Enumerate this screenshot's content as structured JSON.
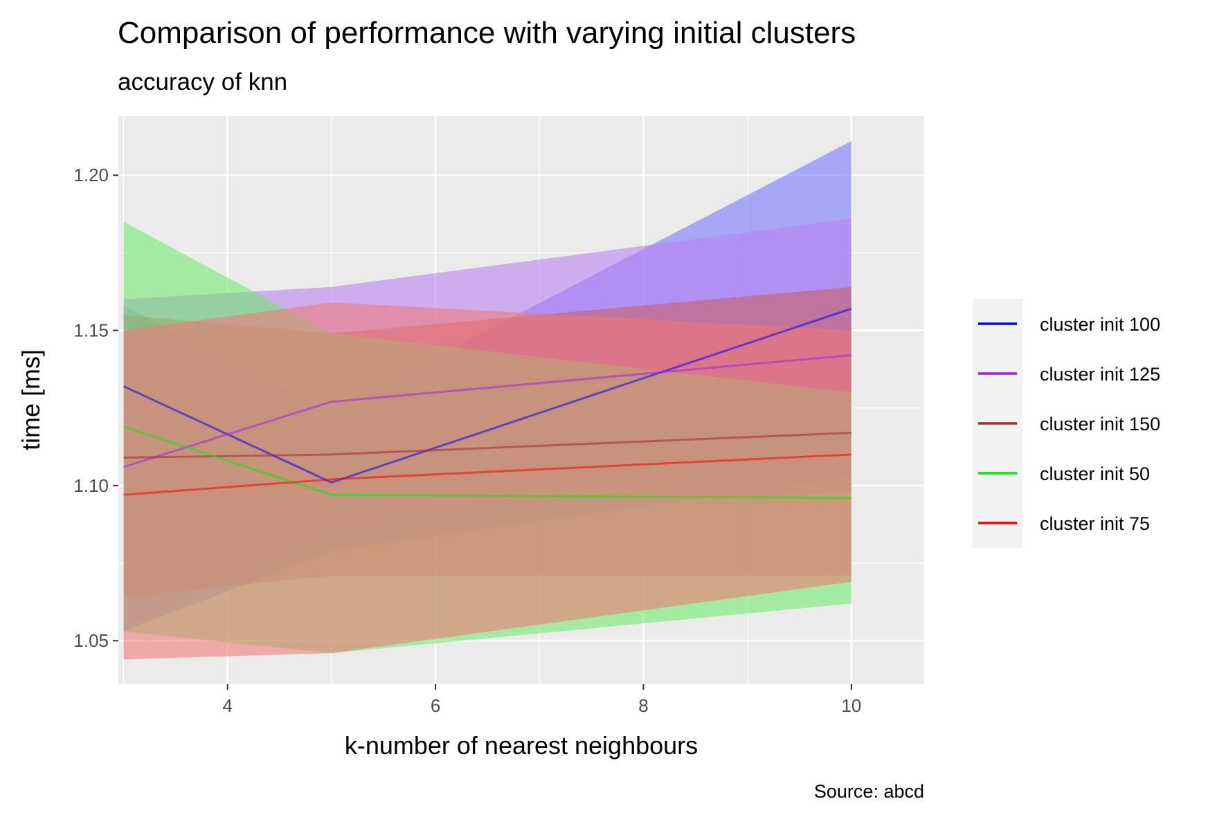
{
  "chart_data": {
    "type": "line",
    "title": "Comparison of performance with varying initial clusters",
    "subtitle": "accuracy of knn",
    "xlabel": "k-number of nearest neighbours",
    "ylabel": "time [ms]",
    "caption": "Source: abcd",
    "xlim": [
      2.95,
      10.7
    ],
    "ylim": [
      1.036,
      1.219
    ],
    "xticks": [
      4,
      6,
      8,
      10
    ],
    "xtick_labels": [
      "4",
      "6",
      "8",
      "10"
    ],
    "yticks": [
      1.05,
      1.1,
      1.15,
      1.2
    ],
    "ytick_labels": [
      "1.05",
      "1.10",
      "1.15",
      "1.20"
    ],
    "grid": true,
    "legend_position": "right",
    "series": [
      {
        "name": "cluster init 100",
        "color": "#0000ff",
        "fill": "#7575ff",
        "x": [
          3,
          5,
          10
        ],
        "y": [
          1.132,
          1.101,
          1.157
        ],
        "ymin": [
          1.053,
          1.079,
          1.103
        ],
        "ymax": [
          1.158,
          1.124,
          1.211
        ]
      },
      {
        "name": "cluster init 125",
        "color": "#a020f0",
        "fill": "#b87ef0",
        "x": [
          3,
          5,
          10
        ],
        "y": [
          1.106,
          1.127,
          1.142
        ],
        "ymin": [
          1.053,
          1.089,
          1.098
        ],
        "ymax": [
          1.16,
          1.164,
          1.186
        ]
      },
      {
        "name": "cluster init 150",
        "color": "#a52a2a",
        "fill": "#c86060",
        "x": [
          3,
          5,
          10
        ],
        "y": [
          1.109,
          1.11,
          1.117
        ],
        "ymin": [
          1.064,
          1.071,
          1.071
        ],
        "ymax": [
          1.155,
          1.149,
          1.164
        ]
      },
      {
        "name": "cluster init 50",
        "color": "#00ee00",
        "fill": "#6ee86e",
        "x": [
          3,
          5,
          10
        ],
        "y": [
          1.119,
          1.097,
          1.096
        ],
        "ymin": [
          1.053,
          1.046,
          1.062
        ],
        "ymax": [
          1.185,
          1.149,
          1.13
        ]
      },
      {
        "name": "cluster init 75",
        "color": "#ff0000",
        "fill": "#f07878",
        "x": [
          3,
          5,
          10
        ],
        "y": [
          1.097,
          1.102,
          1.11
        ],
        "ymin": [
          1.044,
          1.046,
          1.069
        ],
        "ymax": [
          1.15,
          1.159,
          1.15
        ]
      }
    ]
  }
}
